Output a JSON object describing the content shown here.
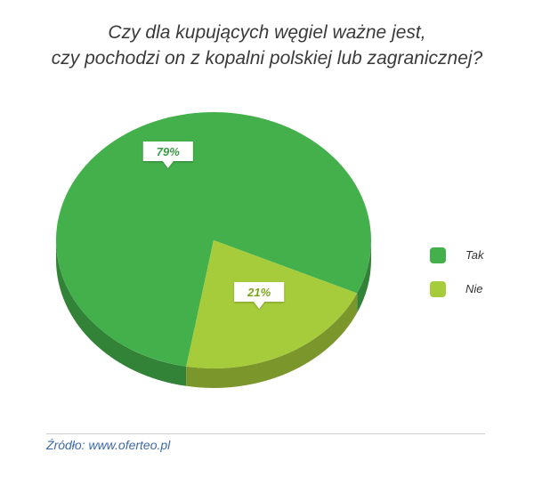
{
  "chart_data": {
    "type": "pie",
    "title_lines": [
      "Czy dla kupujących węgiel ważne jest,",
      "czy pochodzi on z kopalni polskiej lub zagranicznej?"
    ],
    "slices": [
      {
        "label": "Tak",
        "value": 79,
        "display": "79%",
        "color": "#44b04c"
      },
      {
        "label": "Nie",
        "value": 21,
        "display": "21%",
        "color": "#a6cc3c"
      }
    ],
    "legend": "right"
  },
  "source": "Źródło: www.oferteo.pl"
}
